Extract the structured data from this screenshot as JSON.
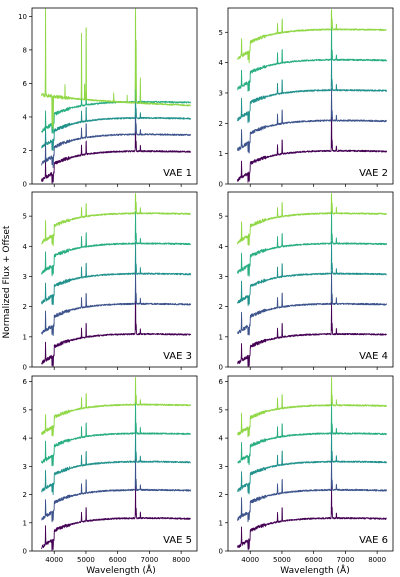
{
  "figure": {
    "ylabel": "Normalized Flux + Offset",
    "xlabel": "Wavelength (Å)",
    "colors": [
      "#440154",
      "#3b528b",
      "#21918c",
      "#27ad81",
      "#8fd744"
    ]
  },
  "chart_data": [
    {
      "type": "line",
      "label": "VAE 1",
      "ylim": [
        0,
        10.5
      ],
      "yticks": [
        0,
        2,
        4,
        6,
        8,
        10
      ],
      "xlim": [
        3300,
        8500
      ],
      "xticks": [
        4000,
        5000,
        6000,
        7000,
        8000
      ],
      "show_xticks": false,
      "series": [
        {
          "offset": 0,
          "level": 1.2
        },
        {
          "offset": 1,
          "level": 2.2
        },
        {
          "offset": 2,
          "level": 3.1
        },
        {
          "offset": 3,
          "level": 3.9
        },
        {
          "offset": 4,
          "level": 5.0,
          "emission": true
        }
      ]
    },
    {
      "type": "line",
      "label": "VAE 2",
      "ylim": [
        0,
        5.8
      ],
      "yticks": [
        0,
        1,
        2,
        3,
        4,
        5
      ],
      "xlim": [
        3300,
        8500
      ],
      "xticks": [
        4000,
        5000,
        6000,
        7000,
        8000
      ],
      "show_xticks": false,
      "series": [
        {
          "offset": 0,
          "level": 1.1
        },
        {
          "offset": 1,
          "level": 2.1
        },
        {
          "offset": 2,
          "level": 3.1
        },
        {
          "offset": 3,
          "level": 4.1
        },
        {
          "offset": 4,
          "level": 5.1
        }
      ]
    },
    {
      "type": "line",
      "label": "VAE 3",
      "ylim": [
        0,
        5.8
      ],
      "yticks": [
        0,
        1,
        2,
        3,
        4,
        5
      ],
      "xlim": [
        3300,
        8500
      ],
      "xticks": [
        4000,
        5000,
        6000,
        7000,
        8000
      ],
      "show_xticks": false,
      "series": [
        {
          "offset": 0,
          "level": 1.1
        },
        {
          "offset": 1,
          "level": 2.1
        },
        {
          "offset": 2,
          "level": 3.1
        },
        {
          "offset": 3,
          "level": 4.1
        },
        {
          "offset": 4,
          "level": 5.1
        }
      ]
    },
    {
      "type": "line",
      "label": "VAE 4",
      "ylim": [
        0,
        5.8
      ],
      "yticks": [
        0,
        1,
        2,
        3,
        4,
        5
      ],
      "xlim": [
        3300,
        8500
      ],
      "xticks": [
        4000,
        5000,
        6000,
        7000,
        8000
      ],
      "show_xticks": false,
      "series": [
        {
          "offset": 0,
          "level": 1.1
        },
        {
          "offset": 1,
          "level": 2.1
        },
        {
          "offset": 2,
          "level": 3.1
        },
        {
          "offset": 3,
          "level": 4.1
        },
        {
          "offset": 4,
          "level": 5.1
        }
      ]
    },
    {
      "type": "line",
      "label": "VAE 5",
      "ylim": [
        0,
        6.2
      ],
      "yticks": [
        0,
        1,
        2,
        3,
        4,
        5,
        6
      ],
      "xlim": [
        3300,
        8500
      ],
      "xticks": [
        4000,
        5000,
        6000,
        7000,
        8000
      ],
      "show_xticks": true,
      "series": [
        {
          "offset": 0,
          "level": 1.1
        },
        {
          "offset": 1,
          "level": 2.1
        },
        {
          "offset": 2,
          "level": 3.1
        },
        {
          "offset": 3,
          "level": 4.1
        },
        {
          "offset": 4,
          "level": 5.2
        }
      ]
    },
    {
      "type": "line",
      "label": "VAE 6",
      "ylim": [
        0,
        6.2
      ],
      "yticks": [
        0,
        1,
        2,
        3,
        4,
        5,
        6
      ],
      "xlim": [
        3300,
        8500
      ],
      "xticks": [
        4000,
        5000,
        6000,
        7000,
        8000
      ],
      "show_xticks": true,
      "series": [
        {
          "offset": 0,
          "level": 1.1
        },
        {
          "offset": 1,
          "level": 2.1
        },
        {
          "offset": 2,
          "level": 3.1
        },
        {
          "offset": 3,
          "level": 4.1
        },
        {
          "offset": 4,
          "level": 5.1
        }
      ]
    }
  ]
}
